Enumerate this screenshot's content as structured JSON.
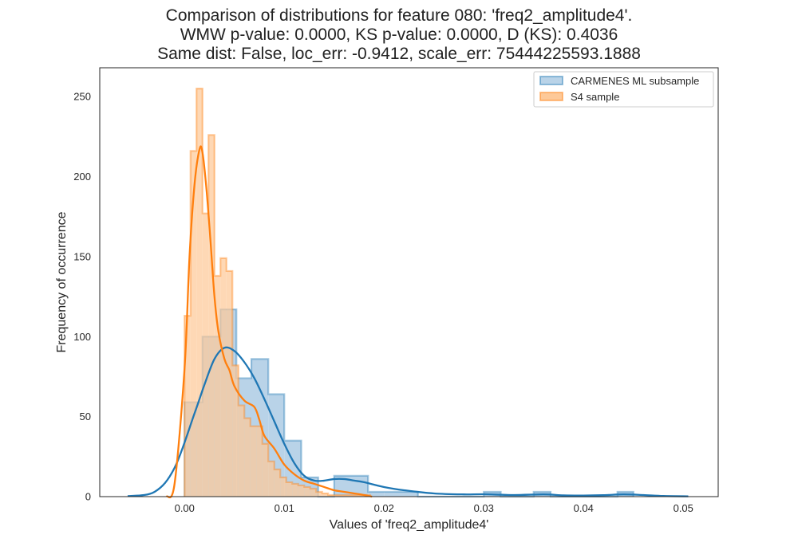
{
  "chart_data": {
    "type": "bar",
    "title_lines": [
      "Comparison of distributions for feature 080: 'freq2_amplitude4'.",
      "WMW p-value: 0.0000, KS p-value: 0.0000, D (KS): 0.4036",
      "Same dist: False, loc_err: -0.9412, scale_err: 75444225593.1888"
    ],
    "xlabel": "Values of 'freq2_amplitude4'",
    "ylabel": "Frequency of occurrence",
    "xlim": [
      -0.0085,
      0.0535
    ],
    "ylim": [
      0,
      268
    ],
    "xticks": [
      0.0,
      0.01,
      0.02,
      0.03,
      0.04,
      0.05
    ],
    "xtick_labels": [
      "0.00",
      "0.01",
      "0.02",
      "0.03",
      "0.04",
      "0.05"
    ],
    "yticks": [
      0,
      50,
      100,
      150,
      200,
      250
    ],
    "ytick_labels": [
      "0",
      "50",
      "100",
      "150",
      "200",
      "250"
    ],
    "grid": false,
    "legend_position": "top-right",
    "series": [
      {
        "name": "CARMENES ML subsample",
        "color": "#1f77b4",
        "fill": "#b9d3e8",
        "hist_edges": [
          0.0,
          0.0018,
          0.0036,
          0.0052,
          0.0067,
          0.0084,
          0.01,
          0.0117,
          0.0134,
          0.015,
          0.0167,
          0.0184,
          0.02,
          0.0217,
          0.0234,
          0.025,
          0.0267,
          0.0284,
          0.03,
          0.0317,
          0.0334,
          0.035,
          0.0367,
          0.0384,
          0.04,
          0.0417,
          0.0434,
          0.045
        ],
        "hist_counts": [
          59,
          100,
          117,
          74,
          86,
          64,
          35,
          12,
          0,
          13,
          13,
          3,
          3,
          3,
          0,
          0,
          0,
          0,
          3,
          0,
          0,
          3,
          0,
          0,
          0,
          0,
          3
        ],
        "kde_x": [
          -0.0057,
          -0.003,
          -0.001,
          0.001,
          0.002,
          0.003,
          0.004,
          0.005,
          0.006,
          0.007,
          0.008,
          0.009,
          0.01,
          0.011,
          0.012,
          0.013,
          0.014,
          0.015,
          0.016,
          0.017,
          0.018,
          0.02,
          0.022,
          0.025,
          0.028,
          0.03,
          0.033,
          0.036,
          0.038,
          0.04,
          0.042,
          0.044,
          0.046,
          0.048,
          0.0505
        ],
        "kde_y": [
          0.3,
          3,
          18,
          52,
          70,
          86,
          93,
          91,
          84,
          74,
          61,
          47,
          33,
          21,
          13,
          10,
          10,
          11,
          11,
          10,
          9,
          6,
          4,
          2,
          1.4,
          1.5,
          1,
          1.4,
          0.8,
          0.7,
          0.9,
          1.4,
          1,
          0.4,
          0.2
        ]
      },
      {
        "name": "S4 sample",
        "color": "#ff7f0e",
        "fill": "#fdc999",
        "hist_edges": [
          0.0,
          0.0006,
          0.0012,
          0.0018,
          0.0024,
          0.003,
          0.0036,
          0.0042,
          0.0048,
          0.0054,
          0.006,
          0.0066,
          0.0072,
          0.0078,
          0.0084,
          0.009,
          0.0096,
          0.0102,
          0.0108,
          0.0114,
          0.012,
          0.0126,
          0.0132,
          0.0138,
          0.0144,
          0.015,
          0.0156,
          0.0162,
          0.0168,
          0.0174,
          0.018,
          0.0186
        ],
        "hist_counts": [
          113,
          216,
          255,
          177,
          226,
          138,
          149,
          141,
          82,
          57,
          49,
          44,
          44,
          33,
          22,
          17,
          12,
          9,
          8,
          7,
          6,
          5,
          3,
          2,
          1,
          1,
          1,
          1,
          1,
          1,
          1
        ],
        "kde_x": [
          -0.0018,
          -0.001,
          0.0,
          0.0005,
          0.001,
          0.0015,
          0.0018,
          0.0022,
          0.0026,
          0.003,
          0.0034,
          0.004,
          0.0045,
          0.005,
          0.006,
          0.007,
          0.0075,
          0.008,
          0.009,
          0.01,
          0.011,
          0.012,
          0.013,
          0.014,
          0.015,
          0.016,
          0.017,
          0.018,
          0.0188
        ],
        "kde_y": [
          0,
          8,
          80,
          150,
          195,
          217,
          215,
          192,
          160,
          125,
          103,
          86,
          79,
          69,
          60,
          56,
          48,
          38,
          30,
          20,
          14,
          10,
          8,
          6,
          4,
          3,
          2,
          1,
          0
        ]
      }
    ]
  }
}
